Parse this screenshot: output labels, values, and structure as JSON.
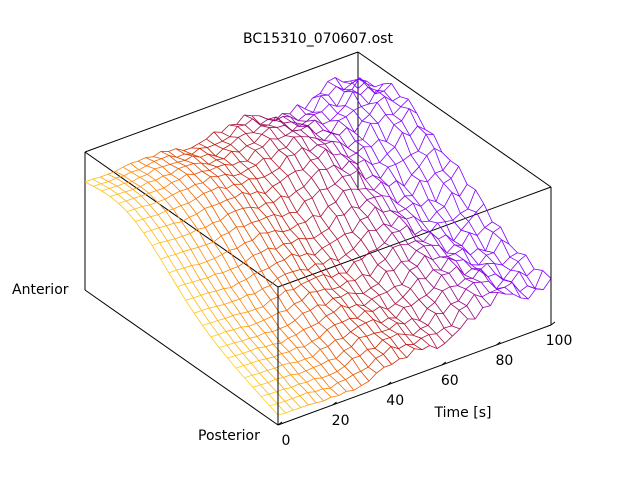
{
  "chart_data": {
    "type": "surface",
    "title": "BC15310_070607.ost",
    "xlabel": "Time [s]",
    "y_axis_end_labels": {
      "near": "Posterior",
      "far": "Anterior"
    },
    "x_ticks": [
      "0",
      "20",
      "40",
      "60",
      "80",
      "100"
    ],
    "xlim": [
      0,
      100
    ],
    "ylim": [
      0,
      1
    ],
    "zlim": [
      0,
      1
    ],
    "grid": false,
    "colormap": [
      "#ffd21e",
      "#ff7a00",
      "#c81e00",
      "#9b0a55",
      "#8000ff"
    ],
    "surface": {
      "x_samples": 37,
      "y_samples": 24,
      "description_free": true
    }
  }
}
